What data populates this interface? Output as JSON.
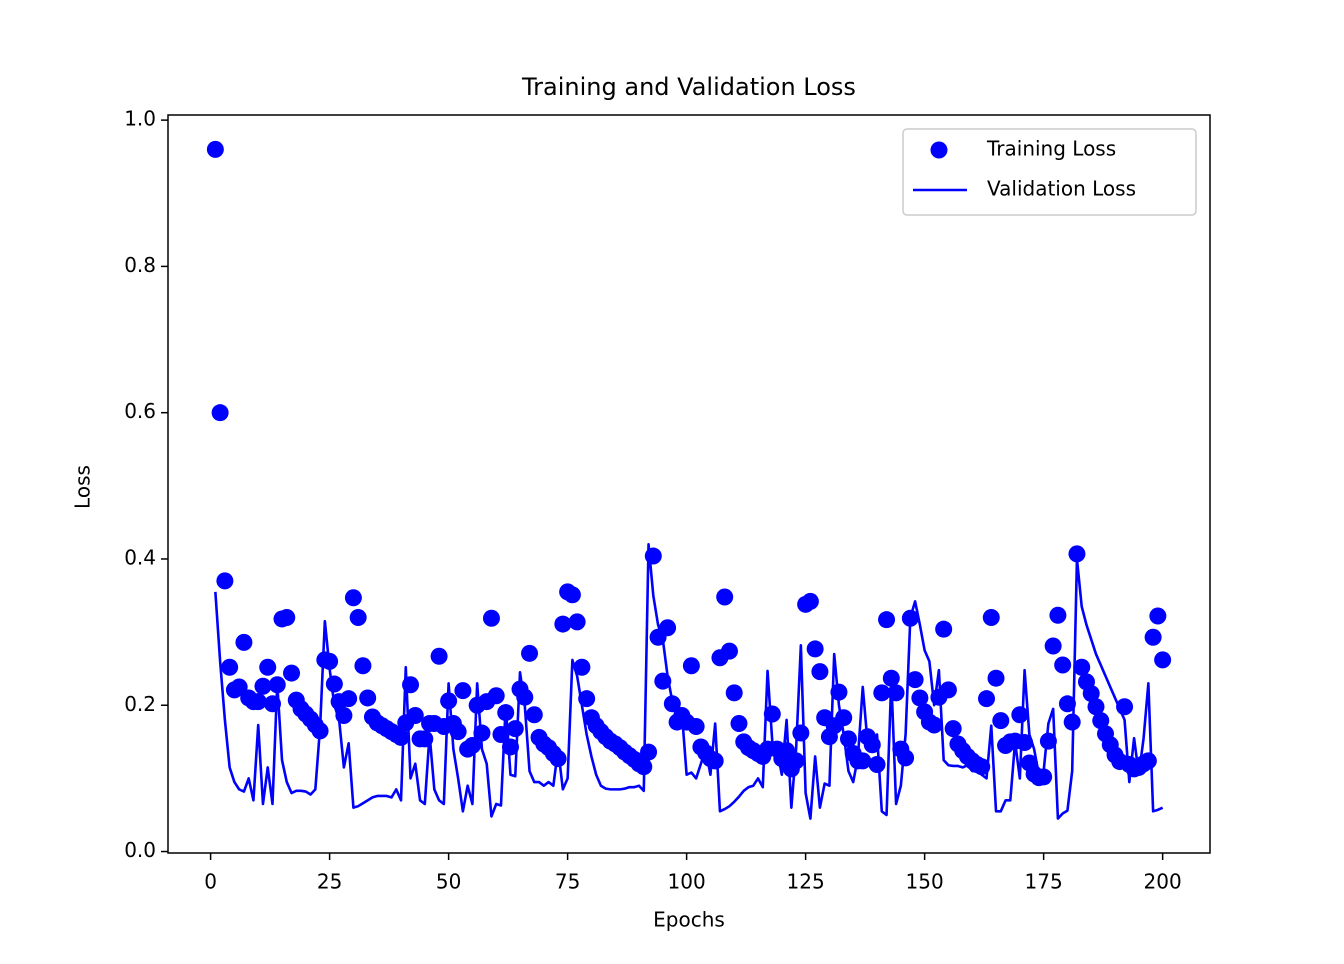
{
  "chart_data": {
    "type": "line",
    "title": "Training and Validation Loss",
    "x_label": "Epochs",
    "y_label": "Loss",
    "x": [
      1,
      2,
      3,
      4,
      5,
      6,
      7,
      8,
      9,
      10,
      11,
      12,
      13,
      14,
      15,
      16,
      17,
      18,
      19,
      20,
      21,
      22,
      23,
      24,
      25,
      26,
      27,
      28,
      29,
      30,
      31,
      32,
      33,
      34,
      35,
      36,
      37,
      38,
      39,
      40,
      41,
      42,
      43,
      44,
      45,
      46,
      47,
      48,
      49,
      50,
      51,
      52,
      53,
      54,
      55,
      56,
      57,
      58,
      59,
      60,
      61,
      62,
      63,
      64,
      65,
      66,
      67,
      68,
      69,
      70,
      71,
      72,
      73,
      74,
      75,
      76,
      77,
      78,
      79,
      80,
      81,
      82,
      83,
      84,
      85,
      86,
      87,
      88,
      89,
      90,
      91,
      92,
      93,
      94,
      95,
      96,
      97,
      98,
      99,
      100,
      101,
      102,
      103,
      104,
      105,
      106,
      107,
      108,
      109,
      110,
      111,
      112,
      113,
      114,
      115,
      116,
      117,
      118,
      119,
      120,
      121,
      122,
      123,
      124,
      125,
      126,
      127,
      128,
      129,
      130,
      131,
      132,
      133,
      134,
      135,
      136,
      137,
      138,
      139,
      140,
      141,
      142,
      143,
      144,
      145,
      146,
      147,
      148,
      149,
      150,
      151,
      152,
      153,
      154,
      155,
      156,
      157,
      158,
      159,
      160,
      161,
      162,
      163,
      164,
      165,
      166,
      167,
      168,
      169,
      170,
      171,
      172,
      173,
      174,
      175,
      176,
      177,
      178,
      179,
      180,
      181,
      182,
      183,
      184,
      185,
      186,
      187,
      188,
      189,
      190,
      191,
      192,
      193,
      194,
      195,
      196,
      197,
      198,
      199,
      200
    ],
    "series": [
      {
        "name": "Training Loss",
        "color": "#0000ff",
        "style": "markers",
        "values": [
          0.96,
          0.6,
          0.37,
          0.252,
          0.221,
          0.225,
          0.286,
          0.21,
          0.205,
          0.205,
          0.226,
          0.252,
          0.202,
          0.228,
          0.318,
          0.32,
          0.244,
          0.207,
          0.195,
          0.188,
          0.181,
          0.173,
          0.165,
          0.262,
          0.26,
          0.229,
          0.205,
          0.186,
          0.209,
          0.347,
          0.32,
          0.254,
          0.21,
          0.184,
          0.176,
          0.172,
          0.168,
          0.164,
          0.16,
          0.156,
          0.176,
          0.228,
          0.186,
          0.154,
          0.154,
          0.175,
          0.175,
          0.267,
          0.171,
          0.206,
          0.175,
          0.164,
          0.22,
          0.14,
          0.145,
          0.2,
          0.162,
          0.205,
          0.319,
          0.213,
          0.16,
          0.19,
          0.143,
          0.168,
          0.222,
          0.211,
          0.271,
          0.187,
          0.156,
          0.147,
          0.142,
          0.134,
          0.127,
          0.311,
          0.355,
          0.351,
          0.314,
          0.252,
          0.209,
          0.183,
          0.172,
          0.164,
          0.157,
          0.151,
          0.147,
          0.142,
          0.136,
          0.131,
          0.126,
          0.12,
          0.116,
          0.136,
          0.404,
          0.293,
          0.233,
          0.306,
          0.202,
          0.177,
          0.186,
          0.177,
          0.254,
          0.171,
          0.143,
          0.135,
          0.127,
          0.124,
          0.265,
          0.348,
          0.274,
          0.217,
          0.175,
          0.15,
          0.142,
          0.138,
          0.134,
          0.13,
          0.14,
          0.188,
          0.14,
          0.127,
          0.138,
          0.113,
          0.124,
          0.162,
          0.338,
          0.342,
          0.277,
          0.246,
          0.183,
          0.157,
          0.172,
          0.218,
          0.183,
          0.154,
          0.134,
          0.124,
          0.124,
          0.157,
          0.146,
          0.119,
          0.217,
          0.317,
          0.237,
          0.217,
          0.14,
          0.128,
          0.319,
          0.235,
          0.21,
          0.191,
          0.177,
          0.173,
          0.211,
          0.304,
          0.221,
          0.168,
          0.147,
          0.138,
          0.13,
          0.124,
          0.119,
          0.116,
          0.209,
          0.32,
          0.237,
          0.179,
          0.145,
          0.15,
          0.151,
          0.187,
          0.149,
          0.121,
          0.106,
          0.101,
          0.102,
          0.151,
          0.281,
          0.323,
          0.255,
          0.202,
          0.177,
          0.407,
          0.252,
          0.232,
          0.216,
          0.198,
          0.179,
          0.161,
          0.146,
          0.132,
          0.123,
          0.198,
          0.119,
          0.113,
          0.115,
          0.12,
          0.124,
          0.293,
          0.322,
          0.262
        ]
      },
      {
        "name": "Validation Loss",
        "color": "#0000ff",
        "style": "line",
        "values": [
          0.355,
          0.26,
          0.18,
          0.115,
          0.095,
          0.085,
          0.082,
          0.1,
          0.07,
          0.173,
          0.065,
          0.115,
          0.065,
          0.23,
          0.125,
          0.095,
          0.08,
          0.083,
          0.083,
          0.082,
          0.078,
          0.085,
          0.17,
          0.315,
          0.25,
          0.2,
          0.18,
          0.115,
          0.148,
          0.06,
          0.062,
          0.066,
          0.07,
          0.074,
          0.076,
          0.076,
          0.076,
          0.074,
          0.085,
          0.07,
          0.252,
          0.1,
          0.12,
          0.07,
          0.065,
          0.16,
          0.085,
          0.07,
          0.065,
          0.23,
          0.14,
          0.1,
          0.055,
          0.09,
          0.065,
          0.23,
          0.14,
          0.12,
          0.048,
          0.065,
          0.063,
          0.2,
          0.105,
          0.103,
          0.245,
          0.2,
          0.11,
          0.095,
          0.095,
          0.09,
          0.095,
          0.09,
          0.14,
          0.085,
          0.1,
          0.262,
          0.24,
          0.2,
          0.16,
          0.13,
          0.105,
          0.09,
          0.086,
          0.085,
          0.085,
          0.085,
          0.086,
          0.088,
          0.088,
          0.09,
          0.083,
          0.42,
          0.35,
          0.31,
          0.29,
          0.24,
          0.205,
          0.19,
          0.19,
          0.105,
          0.108,
          0.1,
          0.12,
          0.14,
          0.105,
          0.175,
          0.055,
          0.058,
          0.062,
          0.068,
          0.075,
          0.083,
          0.088,
          0.09,
          0.1,
          0.088,
          0.247,
          0.15,
          0.14,
          0.105,
          0.18,
          0.06,
          0.14,
          0.282,
          0.08,
          0.045,
          0.13,
          0.06,
          0.093,
          0.09,
          0.27,
          0.2,
          0.16,
          0.11,
          0.095,
          0.13,
          0.225,
          0.15,
          0.14,
          0.16,
          0.055,
          0.05,
          0.235,
          0.065,
          0.09,
          0.16,
          0.32,
          0.342,
          0.31,
          0.275,
          0.26,
          0.2,
          0.248,
          0.125,
          0.118,
          0.117,
          0.117,
          0.115,
          0.118,
          0.11,
          0.11,
          0.105,
          0.1,
          0.172,
          0.055,
          0.055,
          0.07,
          0.07,
          0.15,
          0.1,
          0.248,
          0.16,
          0.14,
          0.105,
          0.11,
          0.175,
          0.195,
          0.045,
          0.052,
          0.056,
          0.11,
          0.4,
          0.335,
          0.31,
          0.29,
          0.27,
          0.255,
          0.24,
          0.225,
          0.21,
          0.195,
          0.18,
          0.095,
          0.155,
          0.105,
          0.155,
          0.23,
          0.055,
          0.057,
          0.06
        ]
      }
    ],
    "xlim": [
      -8.95,
      209.95
    ],
    "ylim": [
      -0.002,
      1.007
    ],
    "xticks": [
      0,
      25,
      50,
      75,
      100,
      125,
      150,
      175,
      200
    ],
    "yticks": [
      {
        "value": 0,
        "label": "0.0"
      },
      0.2,
      0.4,
      0.6,
      0.8,
      {
        "value": 1,
        "label": "1.0"
      }
    ],
    "grid": false,
    "legend": "upper right"
  }
}
